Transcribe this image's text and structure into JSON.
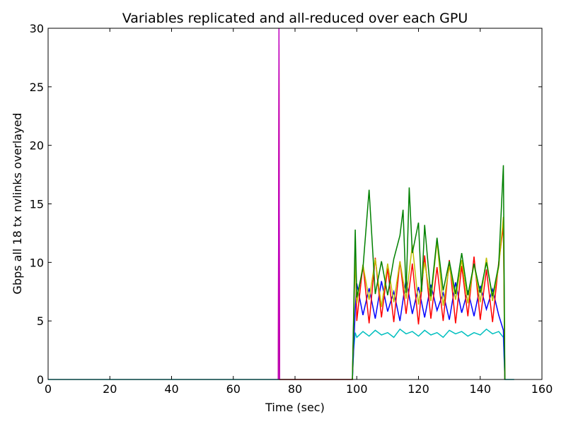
{
  "chart_data": {
    "type": "line",
    "title": "Variables replicated and all-reduced over each GPU",
    "xlabel": "Time (sec)",
    "ylabel": "Gbps all 18 tx nvlinks overlayed",
    "xlim": [
      0,
      160
    ],
    "ylim": [
      0,
      30
    ],
    "xticks": [
      0,
      20,
      40,
      60,
      80,
      100,
      120,
      140,
      160
    ],
    "yticks": [
      0,
      5,
      10,
      15,
      20,
      25,
      30
    ],
    "grid": false,
    "legend": "none",
    "series": [
      {
        "color": "#00bfbf",
        "x": [
          0,
          74.6,
          74.8,
          75.0,
          98.6,
          99.0,
          99.5,
          100,
          102,
          104,
          106,
          108,
          110,
          112,
          114,
          116,
          118,
          120,
          122,
          124,
          126,
          128,
          130,
          132,
          134,
          136,
          138,
          140,
          142,
          144,
          146,
          147.5,
          148,
          151
        ],
        "y": [
          0,
          0,
          13.2,
          0,
          0,
          2.6,
          4.0,
          3.6,
          4.1,
          3.7,
          4.2,
          3.8,
          4.0,
          3.6,
          4.3,
          3.9,
          4.1,
          3.7,
          4.2,
          3.8,
          4.0,
          3.6,
          4.2,
          3.9,
          4.1,
          3.7,
          4.0,
          3.8,
          4.3,
          3.9,
          4.1,
          3.6,
          0,
          0
        ]
      },
      {
        "color": "#0000ff",
        "x": [
          98.6,
          99.5,
          100,
          102,
          104,
          106,
          108,
          110,
          112,
          114,
          116,
          118,
          120,
          122,
          124,
          126,
          128,
          130,
          132,
          134,
          136,
          138,
          140,
          142,
          144,
          146,
          147.5,
          148
        ],
        "y": [
          0,
          6.0,
          8.2,
          5.5,
          7.8,
          5.2,
          8.4,
          5.8,
          7.5,
          5.0,
          8.6,
          5.6,
          7.9,
          5.3,
          8.1,
          5.9,
          7.4,
          5.1,
          8.3,
          5.7,
          7.6,
          5.4,
          8.0,
          6.0,
          7.7,
          5.5,
          4.2,
          0
        ]
      },
      {
        "color": "#ff0000",
        "x": [
          74.6,
          74.8,
          75.0,
          98.6,
          99.5,
          100,
          102,
          104,
          106,
          108,
          110,
          112,
          114,
          116,
          118,
          120,
          122,
          124,
          126,
          128,
          130,
          132,
          134,
          136,
          138,
          140,
          142,
          144,
          146,
          147.5,
          148
        ],
        "y": [
          0,
          28.6,
          0,
          0,
          11.6,
          5.0,
          9.8,
          4.8,
          10.4,
          5.3,
          9.5,
          4.9,
          10.1,
          5.6,
          9.9,
          4.7,
          10.6,
          5.2,
          9.6,
          5.0,
          10.2,
          4.8,
          9.7,
          5.4,
          10.5,
          5.1,
          9.4,
          4.9,
          10.0,
          13.1,
          0
        ]
      },
      {
        "color": "#bfbf00",
        "x": [
          98.6,
          99.5,
          100,
          102,
          104,
          106,
          108,
          110,
          112,
          114,
          116,
          118,
          120,
          122,
          124,
          126,
          128,
          130,
          132,
          134,
          136,
          138,
          140,
          142,
          144,
          146,
          147.5,
          148
        ],
        "y": [
          0,
          10.6,
          6.5,
          9.8,
          6.8,
          10.3,
          6.2,
          9.9,
          6.6,
          10.1,
          6.9,
          11.5,
          6.4,
          10.0,
          6.7,
          11.8,
          6.3,
          9.7,
          6.8,
          10.2,
          6.5,
          9.9,
          6.6,
          10.4,
          6.7,
          9.6,
          13.9,
          0
        ]
      },
      {
        "color": "#008000",
        "x": [
          98.6,
          99.5,
          100,
          102,
          104,
          106,
          108,
          110,
          112,
          114,
          115,
          116,
          117,
          118,
          120,
          121,
          122,
          124,
          126,
          128,
          130,
          132,
          134,
          136,
          138,
          140,
          142,
          144,
          146,
          147.5,
          148
        ],
        "y": [
          0,
          12.8,
          7.0,
          9.5,
          16.2,
          7.3,
          10.1,
          7.2,
          10.3,
          12.3,
          14.5,
          7.4,
          16.4,
          10.8,
          13.4,
          7.5,
          13.2,
          7.1,
          12.1,
          7.6,
          10.1,
          7.3,
          10.8,
          7.2,
          9.9,
          7.4,
          10.0,
          7.1,
          9.8,
          18.3,
          0
        ]
      },
      {
        "color": "#bf00bf",
        "x": [
          74.6,
          74.8,
          75.0
        ],
        "y": [
          0,
          30.0,
          0
        ]
      }
    ]
  }
}
